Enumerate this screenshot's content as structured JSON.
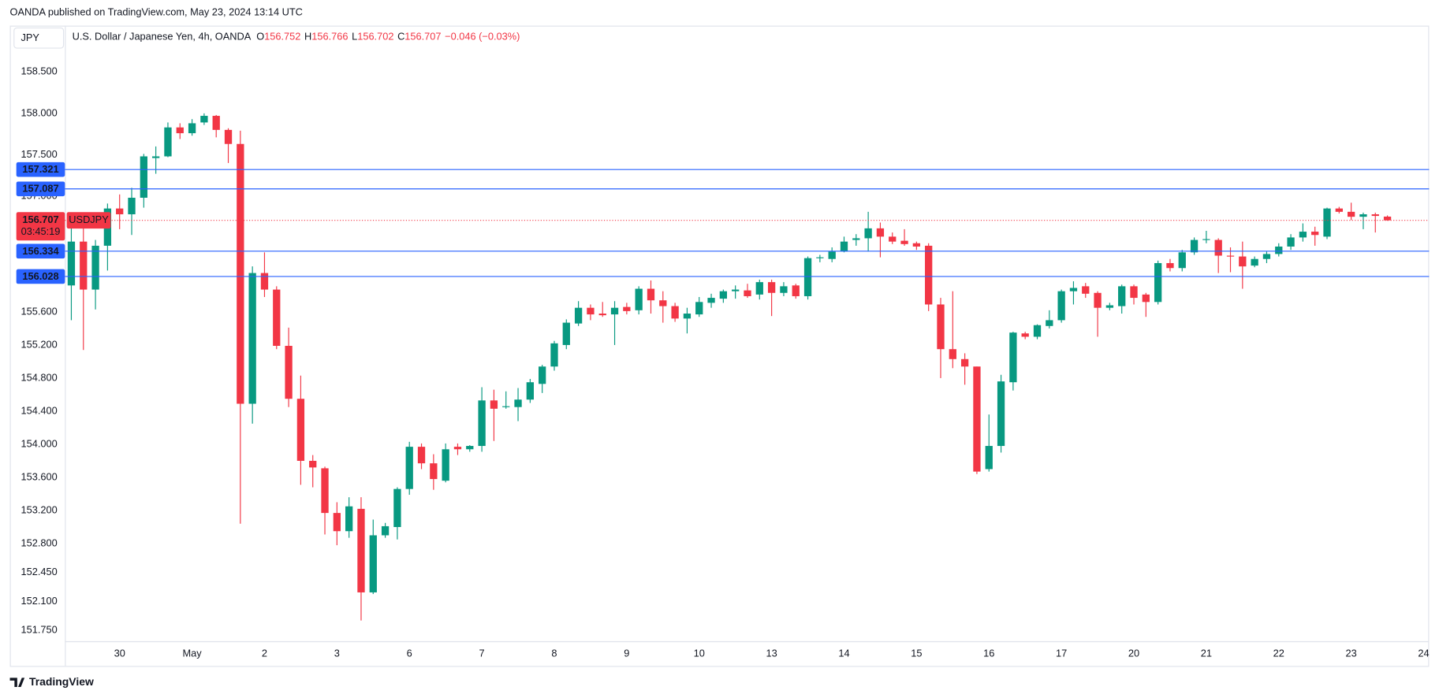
{
  "chart_data": {
    "type": "candlestick",
    "publisher": "OANDA published on TradingView.com, May 23, 2024 13:14 UTC",
    "currency": "JPY",
    "title": "U.S. Dollar / Japanese Yen, 4h, OANDA",
    "ohlc_legend": [
      {
        "label": "O",
        "value": 156.752
      },
      {
        "label": "H",
        "value": 156.766
      },
      {
        "label": "L",
        "value": 156.702
      },
      {
        "label": "C",
        "value": 156.707
      }
    ],
    "change": "−0.046 (−0.03%)",
    "brand": "TradingView",
    "categories": [
      null,
      null,
      null,
      null,
      "30",
      null,
      null,
      null,
      null,
      null,
      "May",
      null,
      null,
      null,
      null,
      null,
      "2",
      null,
      null,
      null,
      null,
      null,
      "3",
      null,
      null,
      null,
      null,
      null,
      "6",
      null,
      null,
      null,
      null,
      null,
      "7",
      null,
      null,
      null,
      null,
      null,
      "8",
      null,
      null,
      null,
      null,
      null,
      "9",
      null,
      null,
      null,
      null,
      null,
      "10",
      null,
      null,
      null,
      null,
      null,
      "13",
      null,
      null,
      null,
      null,
      null,
      "14",
      null,
      null,
      null,
      null,
      null,
      "15",
      null,
      null,
      null,
      null,
      null,
      "16",
      null,
      null,
      null,
      null,
      null,
      "17",
      null,
      null,
      null,
      null,
      null,
      "20",
      null,
      null,
      null,
      null,
      null,
      "21",
      null,
      null,
      null,
      null,
      null,
      "22",
      null,
      null,
      null,
      null,
      null,
      "23",
      null,
      null,
      null,
      null,
      null,
      "24"
    ],
    "open": [
      155.92,
      156.45,
      155.87,
      156.4,
      156.85,
      156.78,
      156.98,
      157.46,
      157.48,
      157.83,
      157.76,
      157.89,
      157.97,
      157.8,
      157.63,
      154.49,
      156.07,
      155.87,
      155.19,
      154.55,
      153.8,
      153.71,
      153.17,
      152.95,
      153.22,
      152.21,
      152.9,
      153.0,
      153.46,
      153.97,
      153.77,
      153.56,
      153.97,
      153.94,
      153.98,
      154.53,
      154.45,
      154.45,
      154.54,
      154.73,
      154.94,
      155.2,
      155.46,
      155.65,
      155.58,
      155.57,
      155.66,
      155.62,
      155.88,
      155.74,
      155.67,
      155.52,
      155.57,
      155.71,
      155.76,
      155.85,
      155.86,
      155.81,
      155.96,
      155.83,
      155.92,
      155.79,
      156.25,
      156.24,
      156.33,
      156.47,
      156.49,
      156.61,
      156.51,
      156.46,
      156.43,
      156.4,
      155.69,
      155.15,
      155.03,
      154.94,
      153.7,
      153.98,
      154.75,
      155.34,
      155.3,
      155.43,
      155.5,
      155.85,
      155.91,
      155.83,
      155.65,
      155.67,
      155.91,
      155.81,
      155.72,
      156.19,
      156.13,
      156.32,
      156.47,
      156.47,
      156.28,
      156.27,
      156.16,
      156.24,
      156.3,
      156.39,
      156.5,
      156.57,
      156.51,
      156.85,
      156.81,
      156.75,
      156.78,
      156.752,
      null,
      null,
      null
    ],
    "high": [
      156.61,
      156.64,
      156.47,
      156.91,
      157.02,
      157.1,
      157.51,
      157.6,
      157.89,
      157.88,
      157.93,
      158.0,
      157.98,
      157.82,
      157.79,
      156.15,
      156.32,
      155.91,
      155.41,
      154.83,
      153.87,
      153.73,
      153.3,
      153.36,
      153.36,
      153.09,
      153.05,
      153.48,
      154.03,
      154.01,
      153.88,
      154.01,
      154.01,
      153.99,
      154.69,
      154.66,
      154.64,
      154.68,
      154.79,
      154.96,
      155.25,
      155.51,
      155.73,
      155.69,
      155.72,
      155.73,
      155.71,
      155.91,
      155.98,
      155.85,
      155.71,
      155.65,
      155.78,
      155.82,
      155.87,
      155.92,
      155.94,
      155.99,
      155.99,
      155.96,
      155.94,
      156.27,
      156.29,
      156.38,
      156.51,
      156.54,
      156.81,
      156.68,
      156.56,
      156.6,
      156.45,
      156.43,
      155.77,
      155.85,
      155.1,
      154.94,
      154.36,
      154.84,
      155.36,
      155.36,
      155.45,
      155.62,
      155.87,
      155.97,
      155.95,
      155.85,
      155.71,
      155.93,
      155.93,
      155.83,
      156.22,
      156.24,
      156.35,
      156.5,
      156.58,
      156.49,
      156.38,
      156.45,
      156.27,
      156.33,
      156.43,
      156.54,
      156.67,
      156.63,
      156.86,
      156.87,
      156.92,
      156.8,
      156.8,
      156.766,
      null,
      null,
      null
    ],
    "low": [
      155.5,
      155.14,
      155.63,
      156.1,
      156.6,
      156.53,
      156.86,
      157.27,
      157.47,
      157.69,
      157.73,
      157.86,
      157.71,
      157.4,
      153.04,
      154.25,
      155.78,
      155.15,
      154.45,
      153.51,
      153.48,
      152.91,
      152.78,
      152.87,
      151.87,
      152.19,
      152.87,
      152.85,
      153.39,
      153.7,
      153.45,
      153.54,
      153.87,
      153.91,
      153.91,
      154.04,
      154.43,
      154.28,
      154.5,
      154.62,
      154.89,
      155.15,
      155.43,
      155.5,
      155.54,
      155.2,
      155.57,
      155.57,
      155.58,
      155.47,
      155.48,
      155.34,
      155.54,
      155.65,
      155.71,
      155.76,
      155.77,
      155.75,
      155.55,
      155.79,
      155.76,
      155.75,
      156.2,
      156.2,
      156.32,
      156.4,
      156.33,
      156.26,
      156.42,
      156.4,
      156.35,
      155.61,
      154.8,
      154.92,
      154.72,
      153.64,
      153.67,
      153.9,
      154.65,
      155.27,
      155.27,
      155.4,
      155.47,
      155.69,
      155.77,
      155.3,
      155.62,
      155.58,
      155.69,
      155.54,
      155.69,
      156.09,
      156.09,
      156.29,
      156.43,
      156.07,
      156.08,
      155.88,
      156.14,
      156.19,
      156.27,
      156.35,
      156.45,
      156.4,
      156.48,
      156.79,
      156.71,
      156.6,
      156.56,
      156.702,
      null,
      null,
      null
    ],
    "close": [
      156.45,
      155.87,
      156.4,
      156.85,
      156.78,
      156.98,
      157.48,
      157.48,
      157.83,
      157.76,
      157.88,
      157.97,
      157.8,
      157.63,
      154.49,
      156.07,
      155.87,
      155.19,
      154.55,
      153.8,
      153.72,
      153.17,
      152.95,
      153.25,
      152.21,
      152.9,
      153.01,
      153.46,
      153.97,
      153.77,
      153.58,
      153.94,
      153.94,
      153.98,
      154.53,
      154.43,
      154.46,
      154.54,
      154.75,
      154.94,
      155.22,
      155.47,
      155.65,
      155.57,
      155.56,
      155.65,
      155.61,
      155.88,
      155.74,
      155.67,
      155.52,
      155.58,
      155.72,
      155.77,
      155.85,
      155.87,
      155.79,
      155.96,
      155.83,
      155.91,
      155.79,
      156.25,
      156.26,
      156.33,
      156.45,
      156.49,
      156.61,
      156.51,
      156.45,
      156.42,
      156.39,
      155.69,
      155.15,
      155.03,
      154.94,
      153.67,
      153.98,
      154.76,
      155.35,
      155.3,
      155.44,
      155.5,
      155.85,
      155.89,
      155.82,
      155.65,
      155.68,
      155.91,
      155.77,
      155.72,
      156.19,
      156.13,
      156.32,
      156.47,
      156.48,
      156.28,
      156.27,
      156.15,
      156.24,
      156.3,
      156.39,
      156.5,
      156.57,
      156.53,
      156.85,
      156.81,
      156.75,
      156.78,
      156.76,
      156.707,
      null,
      null,
      null
    ],
    "up_color": "#089981",
    "down_color": "#f23645",
    "ylim": [
      151.62,
      159.06
    ],
    "yticks": [
      {
        "value": 151.75,
        "label": "151.750"
      },
      {
        "value": 152.1,
        "label": "152.100"
      },
      {
        "value": 152.45,
        "label": "152.450"
      },
      {
        "value": 152.8,
        "label": "152.800"
      },
      {
        "value": 153.2,
        "label": "153.200"
      },
      {
        "value": 153.6,
        "label": "153.600"
      },
      {
        "value": 154.0,
        "label": "154.000"
      },
      {
        "value": 154.4,
        "label": "154.400"
      },
      {
        "value": 154.8,
        "label": "154.800"
      },
      {
        "value": 155.2,
        "label": "155.200"
      },
      {
        "value": 155.6,
        "label": "155.600"
      },
      {
        "value": 157.0,
        "label": "157.000"
      },
      {
        "value": 157.5,
        "label": "157.500"
      },
      {
        "value": 158.0,
        "label": "158.000"
      },
      {
        "value": 158.5,
        "label": "158.500"
      }
    ],
    "grid": false,
    "levels": [
      {
        "value": 157.321,
        "color": "#2962ff"
      },
      {
        "value": 157.087,
        "color": "#2962ff"
      },
      {
        "value": 156.334,
        "color": "#2962ff"
      },
      {
        "value": 156.028,
        "color": "#2962ff"
      }
    ],
    "last_price": {
      "value": 156.707,
      "symbol": "USDJPY",
      "countdown": "03:45:19",
      "color": "#f23645"
    }
  }
}
